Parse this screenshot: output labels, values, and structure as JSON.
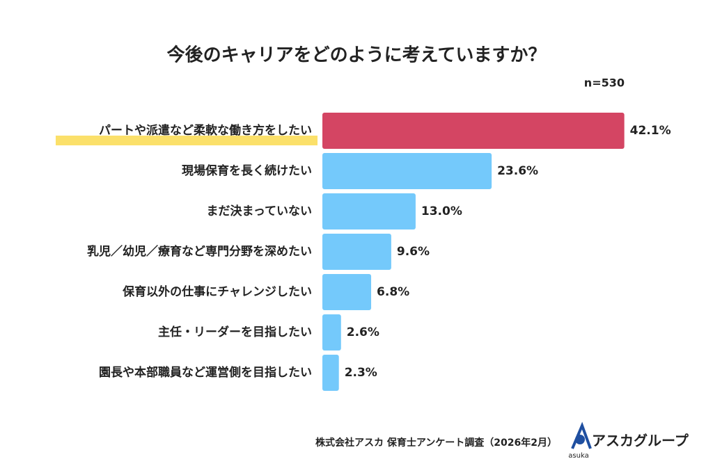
{
  "chart_data": {
    "type": "bar",
    "orientation": "horizontal",
    "title": "今後のキャリアをどのように考えていますか？",
    "note": "n=530",
    "categories": [
      "パートや派遣など柔軟な働き方をしたい",
      "現場保育を長く続けたい",
      "まだ決まっていない",
      "乳児／幼児／療育など専門分野を深めたい",
      "保育以外の仕事にチャレンジしたい",
      "主任・リーダーを目指したい",
      "園長や本部職員など運営側を目指したい"
    ],
    "values": [
      42.1,
      23.6,
      13.0,
      9.6,
      6.8,
      2.6,
      2.3
    ],
    "value_labels": [
      "42.1%",
      "23.6%",
      "13.0%",
      "9.6%",
      "6.8%",
      "2.6%",
      "2.3%"
    ],
    "colors": [
      "#d44563",
      "#74c9fb",
      "#74c9fb",
      "#74c9fb",
      "#74c9fb",
      "#74c9fb",
      "#74c9fb"
    ],
    "source": "株式会社アスカ 保育士アンケート調査（2026年2月）",
    "logo_mark": "asuka",
    "logo_text": "アスカグループ"
  }
}
